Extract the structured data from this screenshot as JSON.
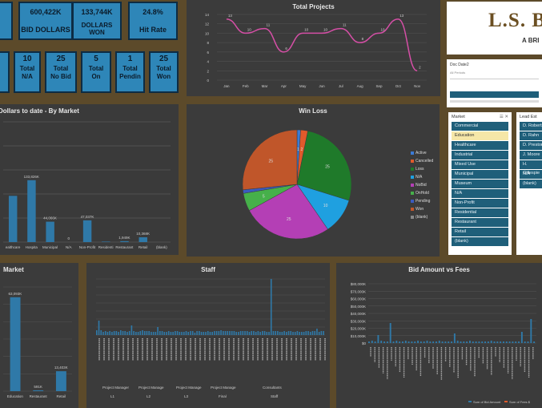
{
  "kpis_top": [
    {
      "value": "600,422K",
      "label": "BID DOLLARS"
    },
    {
      "value": "133,744K",
      "label": "DOLLARS WON"
    },
    {
      "value": "24.8%",
      "label": "Hit Rate"
    }
  ],
  "kpis_counts": [
    {
      "value": "10",
      "line1": "Total",
      "line2": "N/A"
    },
    {
      "value": "25",
      "line1": "Total",
      "line2": "No Bid"
    },
    {
      "value": "5",
      "line1": "Total",
      "line2": "On"
    },
    {
      "value": "1",
      "line1": "Total",
      "line2": "Pendin"
    },
    {
      "value": "25",
      "line1": "Total",
      "line2": "Won"
    }
  ],
  "logo": {
    "text": "L.S. B",
    "sub": "A BRI"
  },
  "date_slicer": {
    "title": "Doc Date2"
  },
  "total_projects": {
    "title": "Total Projects",
    "chart_data": {
      "type": "line",
      "title": "Total Projects",
      "categories": [
        "Jan",
        "Feb",
        "Mar",
        "Apr",
        "May",
        "Jun",
        "Jul",
        "Aug",
        "Sep",
        "Oct",
        "Nov"
      ],
      "values": [
        13,
        10,
        11,
        6,
        10,
        10,
        11,
        8,
        10,
        13,
        2
      ],
      "ylim": [
        0,
        14
      ],
      "yticks": [
        "0",
        "2",
        "4",
        "6",
        "8",
        "10",
        "12",
        "14"
      ],
      "color": "#d54fa6"
    }
  },
  "by_market": {
    "title": "Dollars to date - By Market",
    "chart_data": {
      "type": "bar",
      "categories": [
        "Healthcare",
        "Hospitality",
        "Municipal",
        "N/A",
        "Non-Profit",
        "Residential",
        "Restaurant",
        "Retail",
        "(blank)"
      ],
      "labels": [
        "",
        "133,826K",
        "44,066K",
        "0",
        "47,037K",
        "",
        "1,949K",
        "10,368K",
        ""
      ],
      "values": [
        100000,
        133826,
        44066,
        0,
        47037,
        1000,
        1949,
        10368,
        0
      ],
      "tick_labels": [
        "ealthcare",
        "Hospita",
        "Municipal",
        "N/A",
        "Non-Profit",
        "Residenti",
        "Restaurant",
        "Retail",
        "(blank)"
      ],
      "ylim": [
        0,
        260000
      ],
      "color": "#2f79a8"
    }
  },
  "winloss": {
    "title": "Win Loss",
    "chart_data": {
      "type": "pie",
      "labels": [
        "Active",
        "Cancelled",
        "Loss",
        "N/A",
        "NoBid",
        "OnHold",
        "Pending",
        "Won",
        "(blank)"
      ],
      "values": [
        1,
        2,
        25,
        10,
        25,
        5,
        1,
        25,
        0
      ],
      "colors": [
        "#3b7bd6",
        "#e05a2b",
        "#1f7a2a",
        "#1fa0e0",
        "#b43fb5",
        "#46b04a",
        "#3b5bbf",
        "#c0562a",
        "#888888"
      ],
      "slice_labels": [
        "1",
        "2",
        "25",
        "10",
        "25",
        "5",
        "",
        "25",
        ""
      ]
    }
  },
  "market_slicer": {
    "title": "Market",
    "items": [
      "Commercial",
      "Education",
      "Healthcare",
      "Industrial",
      "Mixed Use",
      "Municipal",
      "Museum",
      "N/A",
      "Non-Profit",
      "Residential",
      "Restaurant",
      "Retail",
      "(blank)"
    ],
    "selected_index": 1
  },
  "lead_slicer": {
    "title": "Lead Est",
    "items": [
      "D. Roberts",
      "D. Rahn",
      "D. Preston",
      "J. Moore",
      "H. Gillespie",
      "N/A",
      "(blank)"
    ]
  },
  "market2": {
    "title": "Market",
    "chart_data": {
      "type": "bar",
      "categories": [
        "Education",
        "Restaurant",
        "Retail"
      ],
      "labels": [
        "63,093K",
        "591K",
        "13,403K"
      ],
      "values": [
        63093,
        591,
        13403
      ],
      "tick_labels": [
        "Education",
        "Restaurant",
        "Retail"
      ],
      "ylim": [
        0,
        70000
      ]
    }
  },
  "staff": {
    "title": "Staff",
    "groups": [
      "Project Manager",
      "Project Manage",
      "Project Manage",
      "Project Manage",
      "Consultants"
    ],
    "subgroups": [
      "L1",
      "L2",
      "L3",
      "Final",
      "Staff"
    ]
  },
  "bid_fees": {
    "title": "Bid Amount vs Fees",
    "yticks": [
      "$0",
      "$10,000K",
      "$20,000K",
      "$30,000K",
      "$40,000K",
      "$50,000K",
      "$60,000K",
      "$70,000K",
      "$80,000K"
    ],
    "legend": [
      "Sum of Bid Amount",
      "Sum of Fees $"
    ]
  }
}
